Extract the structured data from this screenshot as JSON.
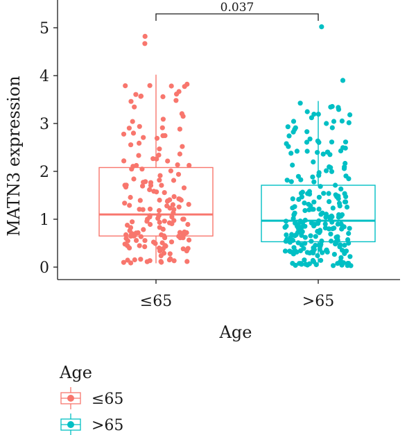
{
  "chart_data": {
    "type": "box",
    "xlabel": "Age",
    "ylabel": "MATN3 expression",
    "ylim": [
      -0.2,
      5.5
    ],
    "yticks": [
      0,
      1,
      2,
      3,
      4,
      5
    ],
    "categories": [
      "≤65",
      ">65"
    ],
    "series": [
      {
        "name": "≤65",
        "color": "#F8766D",
        "box": {
          "min": 0.08,
          "q1": 0.65,
          "median": 1.1,
          "q3": 2.08,
          "max": 4.02
        },
        "outliers": [
          4.82,
          4.67
        ],
        "n_points": 170
      },
      {
        "name": ">65",
        "color": "#00BFC4",
        "box": {
          "min": 0.03,
          "q1": 0.53,
          "median": 0.97,
          "q3": 1.71,
          "max": 3.47
        },
        "outliers": [
          5.02,
          3.9
        ],
        "n_points": 240
      }
    ],
    "significance": {
      "label": "0.037",
      "from": "≤65",
      "to": ">65",
      "y": 5.3
    },
    "legend": {
      "title": "Age",
      "position": "bottom-left",
      "entries": [
        "≤65",
        ">65"
      ]
    }
  }
}
